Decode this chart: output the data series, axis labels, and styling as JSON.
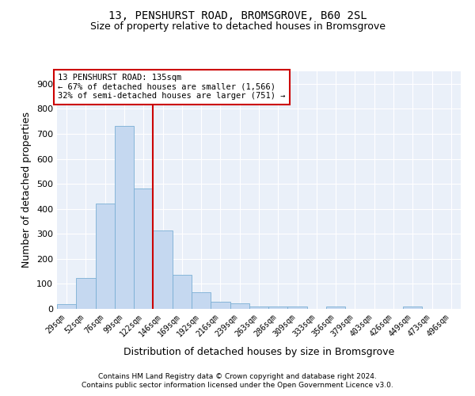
{
  "title": "13, PENSHURST ROAD, BROMSGROVE, B60 2SL",
  "subtitle": "Size of property relative to detached houses in Bromsgrove",
  "xlabel": "Distribution of detached houses by size in Bromsgrove",
  "ylabel": "Number of detached properties",
  "categories": [
    "29sqm",
    "52sqm",
    "76sqm",
    "99sqm",
    "122sqm",
    "146sqm",
    "169sqm",
    "192sqm",
    "216sqm",
    "239sqm",
    "263sqm",
    "286sqm",
    "309sqm",
    "333sqm",
    "356sqm",
    "379sqm",
    "403sqm",
    "426sqm",
    "449sqm",
    "473sqm",
    "496sqm"
  ],
  "values": [
    20,
    125,
    420,
    730,
    480,
    315,
    135,
    68,
    28,
    22,
    10,
    10,
    10,
    0,
    10,
    0,
    0,
    0,
    10,
    0,
    0
  ],
  "bar_color": "#c5d8f0",
  "bar_edge_color": "#7aafd4",
  "bg_color": "#eaf0f9",
  "grid_color": "#ffffff",
  "vline_color": "#cc0000",
  "annotation_line1": "13 PENSHURST ROAD: 135sqm",
  "annotation_line2": "← 67% of detached houses are smaller (1,566)",
  "annotation_line3": "32% of semi-detached houses are larger (751) →",
  "annotation_box_color": "#ffffff",
  "annotation_box_edge": "#cc0000",
  "ylim": [
    0,
    950
  ],
  "yticks": [
    0,
    100,
    200,
    300,
    400,
    500,
    600,
    700,
    800,
    900
  ],
  "footnote1": "Contains HM Land Registry data © Crown copyright and database right 2024.",
  "footnote2": "Contains public sector information licensed under the Open Government Licence v3.0.",
  "title_fontsize": 10,
  "subtitle_fontsize": 9,
  "ylabel_fontsize": 9,
  "xlabel_fontsize": 9
}
